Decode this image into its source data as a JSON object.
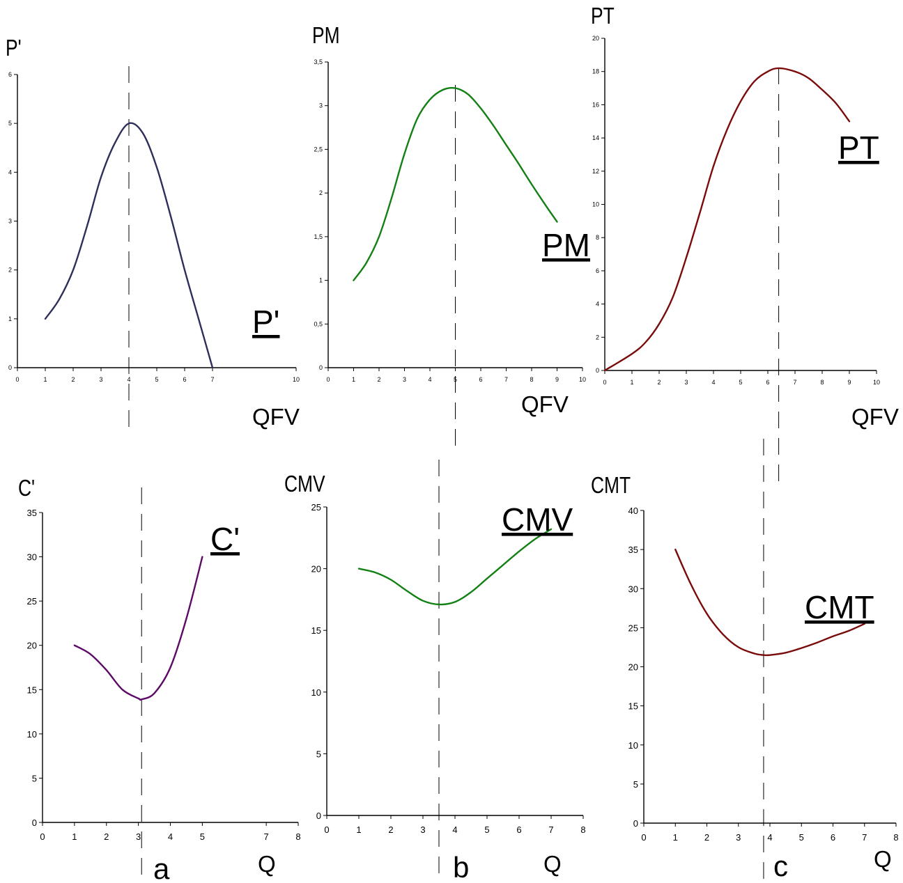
{
  "colors": {
    "p_prime": "#2e2e5c",
    "pm": "#138013",
    "pt": "#7a0b0b",
    "c_prime": "#5c0a66",
    "cmv": "#138013",
    "cmt": "#7a0b0b"
  },
  "chart_data": [
    {
      "id": "p-prime",
      "type": "line",
      "ylabel": "P'",
      "xlabel": "QFV",
      "series_label": "P'",
      "x_ticks": [
        "0",
        "1",
        "2",
        "3",
        "4",
        "5",
        "6",
        "7",
        "10"
      ],
      "y_ticks": [
        "0",
        "1",
        "2",
        "3",
        "4",
        "5",
        "6"
      ],
      "xlim": [
        0,
        10
      ],
      "ylim": [
        0,
        6
      ],
      "x": [
        1,
        1.5,
        2,
        2.5,
        3,
        3.5,
        4,
        4.5,
        5,
        5.5,
        6,
        6.5,
        7
      ],
      "y": [
        1,
        1.4,
        2.0,
        2.9,
        3.9,
        4.6,
        5.0,
        4.8,
        4.1,
        3.1,
        2.0,
        1.0,
        0
      ],
      "guide_x": 4,
      "color_key": "p_prime"
    },
    {
      "id": "pm",
      "type": "line",
      "ylabel": "PM",
      "xlabel": "QFV",
      "series_label": "PM",
      "x_ticks": [
        "0",
        "1",
        "2",
        "3",
        "4",
        "5",
        "6",
        "7",
        "8",
        "9",
        "10"
      ],
      "y_ticks": [
        "0",
        "0,5",
        "1",
        "1,5",
        "2",
        "2,5",
        "3",
        "3,5"
      ],
      "xlim": [
        0,
        10
      ],
      "ylim": [
        0,
        3.5
      ],
      "x": [
        1,
        1.5,
        2,
        2.5,
        3,
        3.5,
        4,
        4.5,
        5,
        5.5,
        6,
        6.5,
        7,
        7.5,
        8,
        8.5,
        9
      ],
      "y": [
        1.0,
        1.2,
        1.5,
        1.95,
        2.45,
        2.85,
        3.07,
        3.18,
        3.2,
        3.13,
        2.97,
        2.77,
        2.55,
        2.33,
        2.1,
        1.88,
        1.67
      ],
      "guide_x": 5,
      "color_key": "pm"
    },
    {
      "id": "pt",
      "type": "line",
      "ylabel": "PT",
      "xlabel": "QFV",
      "series_label": "PT",
      "x_ticks": [
        "0",
        "1",
        "2",
        "3",
        "4",
        "5",
        "6",
        "7",
        "8",
        "9",
        "10"
      ],
      "y_ticks": [
        "0",
        "2",
        "4",
        "6",
        "8",
        "10",
        "12",
        "14",
        "16",
        "18",
        "20"
      ],
      "xlim": [
        0,
        10
      ],
      "ylim": [
        0,
        20
      ],
      "x": [
        0,
        1,
        1.5,
        2,
        2.5,
        3,
        3.5,
        4,
        4.5,
        5,
        5.5,
        6,
        6.4,
        7,
        7.5,
        8,
        8.5,
        9
      ],
      "y": [
        0,
        1.0,
        1.7,
        2.8,
        4.4,
        6.8,
        9.5,
        12.3,
        14.5,
        16.2,
        17.4,
        18.0,
        18.2,
        18.0,
        17.6,
        16.9,
        16.1,
        15.0
      ],
      "guide_x": 6.4,
      "color_key": "pt"
    },
    {
      "id": "c-prime",
      "type": "line",
      "ylabel": "C'",
      "xlabel": "Q",
      "series_label": "C'",
      "marker": "a",
      "x_ticks": [
        "0",
        "1",
        "2",
        "3",
        "4",
        "5",
        "7",
        "8"
      ],
      "y_ticks": [
        "0",
        "5",
        "10",
        "15",
        "20",
        "25",
        "30",
        "35"
      ],
      "xlim": [
        0,
        8
      ],
      "ylim": [
        0,
        35
      ],
      "x": [
        1,
        1.5,
        2,
        2.5,
        3,
        3.1,
        3.5,
        4,
        4.5,
        5
      ],
      "y": [
        20,
        19,
        17.2,
        15.0,
        14.0,
        13.9,
        14.6,
        17.5,
        23.0,
        30.0
      ],
      "guide_x": 3.1,
      "color_key": "c_prime"
    },
    {
      "id": "cmv",
      "type": "line",
      "ylabel": "CMV",
      "xlabel": "Q",
      "series_label": "CMV",
      "marker": "b",
      "x_ticks": [
        "0",
        "1",
        "2",
        "3",
        "4",
        "5",
        "6",
        "7",
        "8"
      ],
      "y_ticks": [
        "0",
        "5",
        "10",
        "15",
        "20",
        "25"
      ],
      "xlim": [
        0,
        8
      ],
      "ylim": [
        0,
        25
      ],
      "x": [
        1,
        1.5,
        2,
        2.5,
        3,
        3.5,
        4,
        4.5,
        5,
        5.5,
        6,
        6.5,
        7
      ],
      "y": [
        20,
        19.7,
        19.1,
        18.2,
        17.4,
        17.1,
        17.3,
        18.1,
        19.2,
        20.3,
        21.4,
        22.4,
        23.2
      ],
      "guide_x": 3.5,
      "color_key": "cmv"
    },
    {
      "id": "cmt",
      "type": "line",
      "ylabel": "CMT",
      "xlabel": "Q",
      "series_label": "CMT",
      "marker": "c",
      "x_ticks": [
        "0",
        "1",
        "2",
        "3",
        "4",
        "5",
        "6",
        "7",
        "8"
      ],
      "y_ticks": [
        "0",
        "5",
        "10",
        "15",
        "20",
        "25",
        "30",
        "35",
        "40"
      ],
      "xlim": [
        0,
        8
      ],
      "ylim": [
        0,
        40
      ],
      "x": [
        1,
        1.5,
        2,
        2.5,
        3,
        3.5,
        3.8,
        4,
        4.5,
        5,
        5.5,
        6,
        6.5,
        7
      ],
      "y": [
        35,
        30.5,
        26.8,
        24.2,
        22.5,
        21.7,
        21.5,
        21.5,
        21.8,
        22.4,
        23.1,
        23.9,
        24.6,
        25.5
      ],
      "guide_x": 3.8,
      "color_key": "cmt"
    }
  ]
}
